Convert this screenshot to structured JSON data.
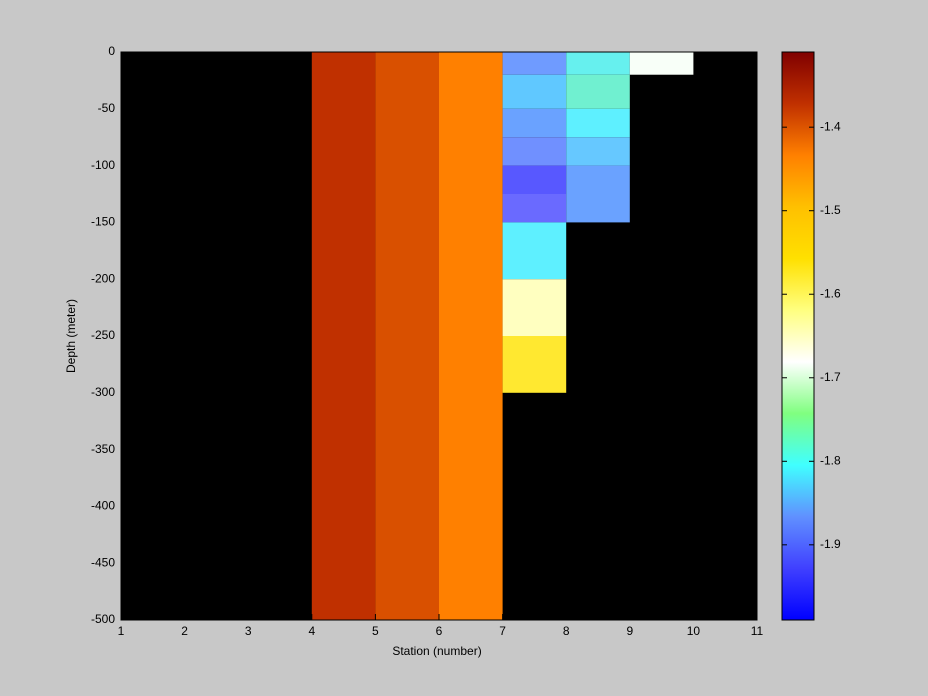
{
  "chart_data": {
    "type": "heatmap",
    "x_label": "Station (number)",
    "y_label": "Depth (meter)",
    "xlim": [
      1,
      11
    ],
    "xticks": [
      1,
      2,
      3,
      4,
      5,
      6,
      7,
      8,
      9,
      10,
      11
    ],
    "ylim": [
      -500,
      0
    ],
    "yticks": [
      0,
      -50,
      -100,
      -150,
      -200,
      -250,
      -300,
      -350,
      -400,
      -450,
      -500
    ],
    "background": "#000000",
    "cells": [
      {
        "x": [
          4,
          5
        ],
        "y": [
          -500,
          0
        ],
        "value": -1.35,
        "color": "#c03000"
      },
      {
        "x": [
          5,
          6
        ],
        "y": [
          -500,
          0
        ],
        "value": -1.37,
        "color": "#d95000"
      },
      {
        "x": [
          6,
          7
        ],
        "y": [
          -500,
          0
        ],
        "value": -1.41,
        "color": "#ff8000"
      },
      {
        "x": [
          7,
          8
        ],
        "y": [
          -20,
          0
        ],
        "value": -1.88,
        "color": "#6f9bff"
      },
      {
        "x": [
          7,
          8
        ],
        "y": [
          -50,
          -20
        ],
        "value": -1.84,
        "color": "#60c8ff"
      },
      {
        "x": [
          7,
          8
        ],
        "y": [
          -75,
          -50
        ],
        "value": -1.87,
        "color": "#6aa2ff"
      },
      {
        "x": [
          7,
          8
        ],
        "y": [
          -100,
          -75
        ],
        "value": -1.88,
        "color": "#7090ff"
      },
      {
        "x": [
          7,
          8
        ],
        "y": [
          -125,
          -100
        ],
        "value": -1.92,
        "color": "#5858ff"
      },
      {
        "x": [
          7,
          8
        ],
        "y": [
          -150,
          -125
        ],
        "value": -1.91,
        "color": "#6a6aff"
      },
      {
        "x": [
          7,
          8
        ],
        "y": [
          -200,
          -150
        ],
        "value": -1.8,
        "color": "#5ef0ff"
      },
      {
        "x": [
          7,
          8
        ],
        "y": [
          -250,
          -200
        ],
        "value": -1.62,
        "color": "#ffffc0"
      },
      {
        "x": [
          7,
          8
        ],
        "y": [
          -300,
          -250
        ],
        "value": -1.52,
        "color": "#ffe830"
      },
      {
        "x": [
          8,
          9
        ],
        "y": [
          -20,
          0
        ],
        "value": -1.79,
        "color": "#66f0ee"
      },
      {
        "x": [
          8,
          9
        ],
        "y": [
          -50,
          -20
        ],
        "value": -1.78,
        "color": "#70f0d0"
      },
      {
        "x": [
          8,
          9
        ],
        "y": [
          -75,
          -50
        ],
        "value": -1.8,
        "color": "#5ef0ff"
      },
      {
        "x": [
          8,
          9
        ],
        "y": [
          -100,
          -75
        ],
        "value": -1.84,
        "color": "#66c8ff"
      },
      {
        "x": [
          8,
          9
        ],
        "y": [
          -150,
          -100
        ],
        "value": -1.87,
        "color": "#6aa2ff"
      },
      {
        "x": [
          9,
          10
        ],
        "y": [
          -20,
          0
        ],
        "value": -1.65,
        "color": "#f8fff8"
      }
    ],
    "colorbar": {
      "lim": [
        -1.99,
        -1.31
      ],
      "ticks": [
        -1.4,
        -1.5,
        -1.6,
        -1.7,
        -1.8,
        -1.9
      ],
      "colors": [
        "#0000ff",
        "#4040ff",
        "#6090ff",
        "#40ffff",
        "#80ff80",
        "#ffffff",
        "#ffff80",
        "#ffe000",
        "#ffc000",
        "#ff8000",
        "#c03000",
        "#800000"
      ]
    }
  }
}
